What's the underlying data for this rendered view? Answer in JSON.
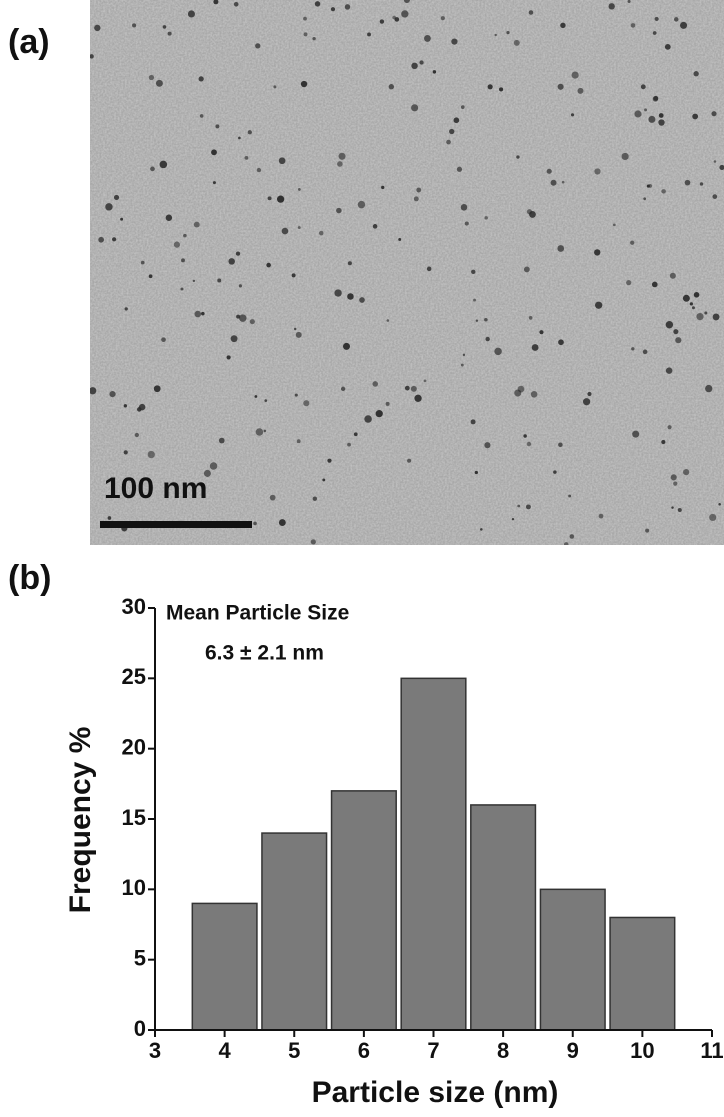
{
  "figure": {
    "panels": [
      "(a)",
      "(b)"
    ],
    "scale_bar": "100 nm"
  },
  "chart_data": {
    "type": "histogram",
    "xlabel": "Particle size (nm)",
    "ylabel": "Frequency %",
    "annotations": [
      "Mean Particle Size",
      "6.3 ± 2.1 nm"
    ],
    "bins": [
      3.5,
      4.5,
      5.5,
      6.5,
      7.5,
      8.5,
      9.5,
      10.5
    ],
    "values": [
      9,
      14,
      17,
      25,
      16,
      10,
      8
    ],
    "color": "#7a7a7a",
    "xlim": [
      3,
      11
    ],
    "xticks": [
      3,
      4,
      5,
      6,
      7,
      8,
      9,
      10,
      11
    ],
    "ylim": [
      0,
      30
    ],
    "yticks": [
      0,
      5,
      10,
      15,
      20,
      25,
      30
    ],
    "grid": false
  }
}
